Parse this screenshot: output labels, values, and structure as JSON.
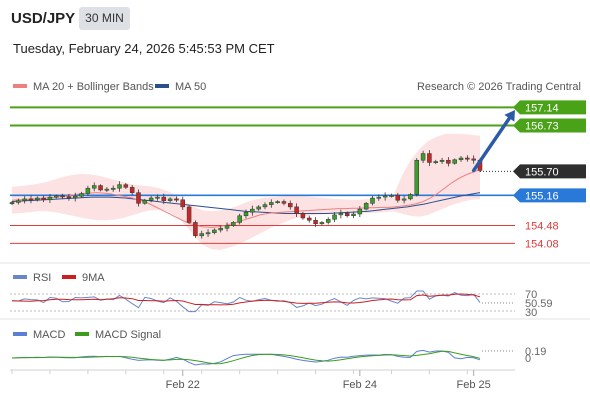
{
  "header": {
    "pair": "USD/JPY",
    "timeframe": "30 MIN",
    "datetime": "Tuesday, February 24, 2026 5:45:53 PM CET"
  },
  "legend": {
    "ma20_label": "MA 20 + Bollinger Bands",
    "ma50_label": "MA 50",
    "ma20_color": "#f08080",
    "ma50_color": "#2b4f8c",
    "credit": "Research © 2026 Trading Central"
  },
  "rsi": {
    "label": "RSI",
    "signal_label": "9MA",
    "rsi_color": "#6a85c8",
    "signal_color": "#cc1f1f",
    "levels": [
      "70",
      "30"
    ],
    "current": "50.59"
  },
  "macd": {
    "label": "MACD",
    "signal_label": "MACD Signal",
    "macd_color": "#5b7fd6",
    "signal_color": "#3c9c1e",
    "zero_label": "0",
    "current": "0.19"
  },
  "chart_data": {
    "type": "candlestick",
    "ylim": [
      153.75,
      157.35
    ],
    "x_ticks": [
      {
        "label": "Feb 22",
        "index": 27
      },
      {
        "label": "Feb 24",
        "index": 55
      },
      {
        "label": "Feb 25",
        "index": 73
      }
    ],
    "levels": [
      {
        "value": 157.14,
        "label": "157.14",
        "kind": "resistance",
        "color": "#4aa218"
      },
      {
        "value": 156.73,
        "label": "156.73",
        "kind": "resistance",
        "color": "#4aa218"
      },
      {
        "value": 155.7,
        "label": "155.70",
        "kind": "current",
        "color": "#2e2e2e"
      },
      {
        "value": 155.16,
        "label": "155.16",
        "kind": "pivot",
        "color": "#2979d8"
      },
      {
        "value": 154.48,
        "label": "154.48",
        "kind": "support",
        "color": "#e23b3b"
      },
      {
        "value": 154.08,
        "label": "154.08",
        "kind": "support",
        "color": "#e23b3b"
      }
    ],
    "arrow": {
      "from_index": 73,
      "from_value": 155.72,
      "to_index": 78,
      "to_value": 157.08,
      "color": "#2b5aa8"
    },
    "close": [
      155.0,
      155.04,
      155.08,
      155.06,
      155.1,
      155.06,
      155.12,
      155.15,
      155.13,
      155.1,
      155.14,
      155.2,
      155.32,
      155.38,
      155.28,
      155.3,
      155.32,
      155.4,
      155.34,
      155.22,
      154.98,
      155.05,
      155.1,
      155.12,
      155.04,
      155.08,
      155.06,
      154.9,
      154.55,
      154.25,
      154.3,
      154.32,
      154.38,
      154.42,
      154.48,
      154.55,
      154.7,
      154.78,
      154.85,
      154.9,
      154.95,
      155.0,
      155.02,
      154.98,
      154.9,
      154.75,
      154.65,
      154.6,
      154.52,
      154.55,
      154.62,
      154.72,
      154.76,
      154.7,
      154.74,
      154.85,
      154.98,
      155.1,
      155.12,
      155.15,
      155.16,
      155.05,
      155.08,
      155.18,
      155.95,
      156.1,
      155.9,
      155.92,
      155.95,
      155.88,
      155.96,
      156.0,
      155.98,
      155.95,
      155.72
    ],
    "ma20": [
      155.05,
      155.06,
      155.07,
      155.08,
      155.09,
      155.1,
      155.11,
      155.13,
      155.15,
      155.18,
      155.2,
      155.21,
      155.22,
      155.21,
      155.19,
      155.16,
      155.13,
      155.1,
      155.05,
      155.0,
      154.92,
      154.84,
      154.76,
      154.68,
      154.6,
      154.53,
      154.48,
      154.45,
      154.44,
      154.45,
      154.48,
      154.52,
      154.57,
      154.62,
      154.67,
      154.72,
      154.75,
      154.77,
      154.78,
      154.79,
      154.8,
      154.81,
      154.82,
      154.83,
      154.84,
      154.85,
      154.86,
      154.86,
      154.87,
      154.87,
      154.88,
      154.88,
      154.89,
      154.89,
      154.9,
      154.92,
      154.94,
      154.97,
      155.02,
      155.1,
      155.2,
      155.32,
      155.44,
      155.54,
      155.62,
      155.68,
      155.74
    ],
    "ma50": [
      155.02,
      155.03,
      155.04,
      155.05,
      155.06,
      155.07,
      155.08,
      155.09,
      155.1,
      155.11,
      155.12,
      155.12,
      155.12,
      155.11,
      155.1,
      155.08,
      155.06,
      155.04,
      155.02,
      155.0,
      154.98,
      154.96,
      154.94,
      154.92,
      154.9,
      154.88,
      154.86,
      154.84,
      154.82,
      154.8,
      154.79,
      154.78,
      154.77,
      154.76,
      154.75,
      154.75,
      154.75,
      154.75,
      154.75,
      154.75,
      154.76,
      154.77,
      154.78,
      154.79,
      154.8,
      154.82,
      154.84,
      154.86,
      154.88,
      154.9,
      154.93,
      154.96,
      155.0,
      155.04,
      155.08,
      155.12,
      155.16,
      155.19,
      155.22
    ],
    "bb_upper": [
      155.35,
      155.37,
      155.39,
      155.42,
      155.46,
      155.52,
      155.58,
      155.62,
      155.64,
      155.63,
      155.6,
      155.55,
      155.5,
      155.45,
      155.4,
      155.38,
      155.36,
      155.32,
      155.25,
      155.15,
      155.0,
      154.9,
      154.82,
      154.8,
      154.82,
      154.86,
      154.92,
      155.0,
      155.06,
      155.1,
      155.12,
      155.14,
      155.15,
      155.15,
      155.14,
      155.12,
      155.1,
      155.08,
      155.07,
      155.06,
      155.06,
      155.07,
      155.08,
      155.1,
      155.15,
      155.6,
      155.95,
      156.2,
      156.38,
      156.48,
      156.54,
      156.55,
      156.54,
      156.52,
      156.5
    ],
    "bb_lower": [
      154.75,
      154.76,
      154.78,
      154.8,
      154.8,
      154.78,
      154.74,
      154.7,
      154.66,
      154.62,
      154.6,
      154.6,
      154.62,
      154.66,
      154.72,
      154.78,
      154.82,
      154.84,
      154.8,
      154.68,
      154.5,
      154.25,
      154.05,
      153.95,
      153.93,
      153.98,
      154.05,
      154.14,
      154.24,
      154.34,
      154.44,
      154.52,
      154.6,
      154.66,
      154.7,
      154.72,
      154.74,
      154.75,
      154.76,
      154.76,
      154.76,
      154.76,
      154.77,
      154.78,
      154.8,
      154.75,
      154.7,
      154.68,
      154.72,
      154.8,
      154.88,
      154.96,
      155.02,
      155.06,
      155.08
    ]
  }
}
